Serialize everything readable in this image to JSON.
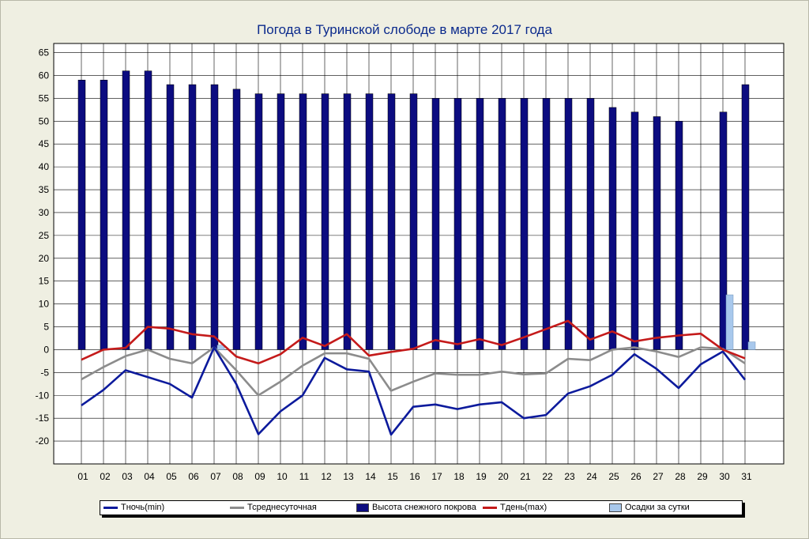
{
  "chart_data": {
    "type": "bar",
    "title": "Погода в Туринской слободе в марте 2017 года",
    "xlabel": "",
    "ylabel": "",
    "ylim": [
      -25,
      67
    ],
    "yticks": [
      65,
      60,
      55,
      50,
      45,
      40,
      35,
      30,
      25,
      20,
      15,
      10,
      5,
      0,
      -5,
      -10,
      -15,
      -20
    ],
    "categories": [
      "01",
      "02",
      "03",
      "04",
      "05",
      "06",
      "07",
      "08",
      "09",
      "10",
      "11",
      "12",
      "13",
      "14",
      "15",
      "16",
      "17",
      "18",
      "19",
      "20",
      "21",
      "22",
      "23",
      "24",
      "25",
      "26",
      "27",
      "28",
      "29",
      "30",
      "31"
    ],
    "grid": true,
    "legend_position": "bottom",
    "series": [
      {
        "name": "Тночь(min)",
        "kind": "line",
        "color": "#0c1a9c",
        "values": [
          -12.2,
          -8.8,
          -4.5,
          -6.0,
          -7.5,
          -10.5,
          0.5,
          -7.5,
          -18.5,
          -13.5,
          -10.0,
          -1.8,
          -4.3,
          -4.8,
          -18.6,
          -12.5,
          -12.0,
          -13.0,
          -12.0,
          -11.5,
          -15.0,
          -14.3,
          -9.6,
          -8.0,
          -5.5,
          -1.0,
          -4.2,
          -8.4,
          -3.2,
          -0.4,
          -6.6
        ]
      },
      {
        "name": "Тсреднесуточная",
        "kind": "line",
        "color": "#8c8c8c",
        "values": [
          -6.5,
          -3.8,
          -1.4,
          0.0,
          -2.0,
          -3.0,
          0.5,
          -4.5,
          -10.0,
          -7.0,
          -3.5,
          -0.8,
          -0.8,
          -2.0,
          -9.0,
          -7.0,
          -5.2,
          -5.5,
          -5.5,
          -4.8,
          -5.4,
          -5.2,
          -2.0,
          -2.3,
          0.0,
          0.5,
          -0.4,
          -1.6,
          0.5,
          0.2,
          -3.0
        ]
      },
      {
        "name": "Высота снежного покрова",
        "kind": "bar",
        "color": "#0c0c80",
        "values": [
          59,
          59,
          61,
          61,
          58,
          58,
          58,
          57,
          56,
          56,
          56,
          56,
          56,
          56,
          56,
          56,
          55,
          55,
          55,
          55,
          55,
          55,
          55,
          55,
          53,
          52,
          51,
          50,
          null,
          52,
          58
        ]
      },
      {
        "name": "Тдень(max)",
        "kind": "line",
        "color": "#c41a1a",
        "values": [
          -2.2,
          0.0,
          0.4,
          5.0,
          4.6,
          3.4,
          2.9,
          -1.5,
          -3.0,
          -1.0,
          2.6,
          0.8,
          3.4,
          -1.3,
          -0.5,
          0.2,
          2.1,
          1.2,
          2.3,
          1.0,
          2.7,
          4.5,
          6.3,
          2.2,
          4.0,
          1.8,
          2.6,
          3.1,
          3.5,
          0.0,
          -1.9
        ]
      },
      {
        "name": "Осадки за сутки",
        "kind": "bar",
        "color": "#a8c8ec",
        "values": [
          0,
          0,
          0,
          0,
          0,
          0,
          1.0,
          0,
          0,
          0,
          0,
          0,
          0,
          0,
          0,
          0,
          0,
          0,
          0,
          0,
          0,
          0,
          0,
          0,
          0,
          0,
          0,
          0,
          0,
          12.0,
          1.7
        ]
      }
    ]
  }
}
